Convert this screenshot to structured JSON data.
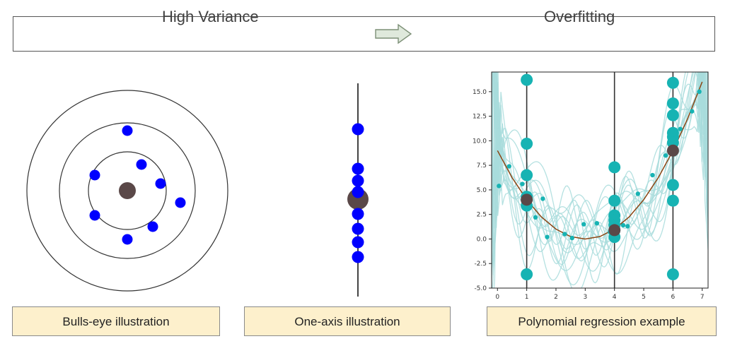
{
  "header": {
    "left_label": "High Variance",
    "right_label": "Overfitting",
    "arrow_icon": "right-arrow-icon"
  },
  "captions": {
    "bullseye": "Bulls-eye illustration",
    "one_axis": "One-axis illustration",
    "polynomial": "Polynomial regression example"
  },
  "colors": {
    "sample_points": "#0000ff",
    "center_point": "#5a4848",
    "data_points": "#17b3b3",
    "fit_curves": "#a8dcdc",
    "true_curve": "#8b4513",
    "caption_bg": "#fdf0cc"
  },
  "chart_data": {
    "type": "line",
    "title": "",
    "xlabel": "",
    "ylabel": "",
    "xlim": [
      -0.2,
      7.2
    ],
    "ylim": [
      -5,
      17
    ],
    "x_ticks": [
      "0",
      "1",
      "2",
      "3",
      "4",
      "5",
      "6",
      "7"
    ],
    "y_ticks": [
      "-5.0",
      "-2.5",
      "0.0",
      "2.5",
      "5.0",
      "7.5",
      "10.0",
      "12.5",
      "15.0"
    ],
    "vertical_lines_x": [
      1,
      4,
      6
    ],
    "true_function": {
      "x": [
        0,
        0.5,
        1,
        1.5,
        2,
        2.5,
        3,
        3.5,
        4,
        4.5,
        5,
        5.5,
        6,
        6.5,
        7
      ],
      "y": [
        9,
        6.25,
        4,
        2.25,
        1,
        0.25,
        0,
        0.25,
        1,
        2.25,
        4,
        6.25,
        9,
        12.25,
        16
      ]
    },
    "predictions_at_x1": [
      16.2,
      9.7,
      6.5,
      4.3,
      3.4,
      -3.6
    ],
    "predictions_at_x4": [
      7.3,
      3.9,
      2.4,
      1.9,
      1.4,
      0.9,
      0.2
    ],
    "predictions_at_x6": [
      15.9,
      13.8,
      12.6,
      10.8,
      10.4,
      9.8,
      5.5,
      3.9,
      -3.6
    ],
    "mean_predictions": [
      {
        "x": 1,
        "y": 4.0
      },
      {
        "x": 4,
        "y": 0.9
      },
      {
        "x": 6,
        "y": 9.0
      }
    ],
    "training_points": {
      "x": [
        0.05,
        0.4,
        0.85,
        1.3,
        1.55,
        1.7,
        2.3,
        2.55,
        2.95,
        3.4,
        3.85,
        4.3,
        4.45,
        4.8,
        5.3,
        5.75,
        6.05,
        6.25,
        6.65,
        6.9
      ],
      "y": [
        5.4,
        7.4,
        5.6,
        2.2,
        4.1,
        0.2,
        0.5,
        0.1,
        1.5,
        1.6,
        0.7,
        1.4,
        1.3,
        4.6,
        6.5,
        8.5,
        10.1,
        11.2,
        13.0,
        15.0
      ]
    }
  }
}
